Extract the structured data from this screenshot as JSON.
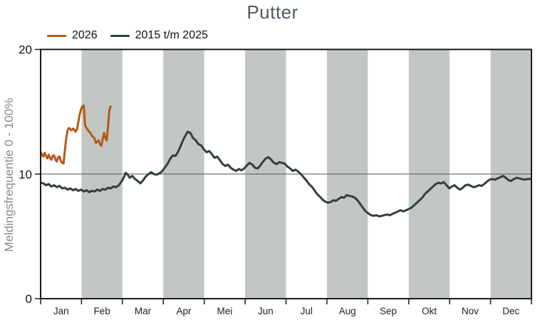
{
  "page": {
    "title": "Putter"
  },
  "legend": {
    "items": [
      {
        "label": "2026",
        "color": "#b4591b"
      },
      {
        "label": "2015 t/m 2025",
        "color": "#333f39"
      }
    ]
  },
  "chart_data": {
    "type": "line",
    "title": "Putter",
    "ylabel": "Meldingsfrequentie 0 - 100%",
    "ylim": [
      0,
      20
    ],
    "yticks": [
      0,
      10,
      20
    ],
    "reference_line_y": 10,
    "x_axis": {
      "unit": "day-of-year",
      "months": [
        "Jan",
        "Feb",
        "Mar",
        "Apr",
        "Mei",
        "Jun",
        "Jul",
        "Aug",
        "Sep",
        "Okt",
        "Nov",
        "Dec"
      ]
    },
    "shaded_months": [
      "Feb",
      "Apr",
      "Jun",
      "Aug",
      "Okt",
      "Dec"
    ],
    "grid": "horizontal-reference-only",
    "legend_position": "top-left",
    "colors": {
      "band": "#c3c7c3",
      "axis": "#1a1a1a",
      "grid": "#555555",
      "title": "#4f5a66",
      "ylabel_text": "#8a8a8a"
    },
    "series": [
      {
        "name": "2026",
        "color": "#b4591b",
        "x": [
          1,
          2,
          3,
          4,
          5,
          6,
          7,
          8,
          9,
          10,
          11,
          12,
          13,
          14,
          15,
          16,
          17,
          18,
          19,
          20,
          21,
          22,
          23,
          24,
          25,
          26,
          27,
          28,
          29,
          30,
          31,
          32,
          33,
          34,
          35,
          36,
          37,
          38,
          39,
          40,
          41,
          42,
          43,
          44,
          45,
          46,
          47,
          48,
          49,
          50,
          51,
          52,
          53
        ],
        "values": [
          11.8,
          11.55,
          11.4,
          11.7,
          11.45,
          11.25,
          11.55,
          11.3,
          11.15,
          11.45,
          11.5,
          11.15,
          11.0,
          11.35,
          11.4,
          11.05,
          10.9,
          10.85,
          11.9,
          12.9,
          13.5,
          13.7,
          13.6,
          13.5,
          13.65,
          13.55,
          13.4,
          13.6,
          14.2,
          14.8,
          15.2,
          15.45,
          15.5,
          13.9,
          13.7,
          13.55,
          13.4,
          13.3,
          13.05,
          13.0,
          12.85,
          12.5,
          12.6,
          12.7,
          12.4,
          12.25,
          12.8,
          13.3,
          12.9,
          12.7,
          13.8,
          15.1,
          15.5
        ]
      },
      {
        "name": "2015 t/m 2025",
        "color": "#333f39",
        "x": [
          1,
          3,
          5,
          7,
          9,
          11,
          13,
          15,
          17,
          19,
          21,
          23,
          25,
          27,
          29,
          31,
          33,
          35,
          37,
          39,
          41,
          43,
          45,
          47,
          49,
          51,
          53,
          55,
          57,
          59,
          61,
          63,
          64,
          66,
          67,
          69,
          71,
          73,
          75,
          77,
          79,
          81,
          83,
          85,
          87,
          89,
          91,
          93,
          95,
          97,
          99,
          101,
          103,
          105,
          107,
          109,
          110,
          112,
          114,
          116,
          118,
          120,
          122,
          124,
          126,
          128,
          130,
          132,
          134,
          136,
          138,
          140,
          142,
          144,
          146,
          148,
          150,
          152,
          154,
          156,
          158,
          160,
          162,
          164,
          166,
          168,
          170,
          172,
          174,
          176,
          178,
          180,
          182,
          184,
          186,
          188,
          190,
          192,
          194,
          196,
          198,
          200,
          202,
          204,
          206,
          208,
          210,
          212,
          214,
          216,
          218,
          220,
          222,
          224,
          226,
          228,
          230,
          232,
          234,
          236,
          238,
          240,
          242,
          244,
          246,
          248,
          250,
          252,
          254,
          256,
          258,
          260,
          262,
          264,
          266,
          268,
          270,
          272,
          274,
          276,
          278,
          280,
          282,
          284,
          286,
          288,
          290,
          292,
          294,
          296,
          298,
          300,
          302,
          304,
          306,
          308,
          310,
          312,
          314,
          316,
          318,
          320,
          322,
          324,
          326,
          328,
          330,
          332,
          334,
          336,
          338,
          340,
          342,
          344,
          346,
          348,
          350,
          352,
          354,
          356,
          358,
          360,
          362,
          365
        ],
        "values": [
          9.3,
          9.25,
          9.1,
          9.2,
          9.0,
          9.1,
          8.95,
          9.05,
          8.85,
          8.9,
          8.75,
          8.85,
          8.7,
          8.8,
          8.65,
          8.75,
          8.6,
          8.7,
          8.55,
          8.65,
          8.6,
          8.75,
          8.65,
          8.8,
          8.75,
          8.9,
          8.85,
          9.0,
          8.95,
          9.1,
          9.4,
          9.8,
          10.1,
          9.9,
          9.7,
          9.85,
          9.6,
          9.45,
          9.25,
          9.5,
          9.8,
          10.0,
          10.15,
          10.0,
          9.95,
          10.05,
          10.2,
          10.5,
          10.8,
          11.2,
          11.5,
          11.45,
          11.8,
          12.3,
          12.8,
          13.2,
          13.4,
          13.3,
          12.9,
          12.7,
          12.4,
          12.3,
          12.0,
          11.75,
          11.85,
          11.6,
          11.3,
          11.4,
          11.1,
          10.8,
          10.65,
          10.75,
          10.5,
          10.35,
          10.25,
          10.4,
          10.3,
          10.45,
          10.7,
          10.9,
          10.75,
          10.5,
          10.45,
          10.7,
          11.0,
          11.25,
          11.35,
          11.15,
          10.9,
          10.8,
          10.95,
          10.9,
          10.85,
          10.6,
          10.45,
          10.25,
          10.35,
          10.2,
          10.0,
          9.75,
          9.5,
          9.2,
          9.0,
          8.7,
          8.4,
          8.2,
          7.95,
          7.8,
          7.7,
          7.75,
          7.9,
          7.85,
          8.0,
          8.15,
          8.1,
          8.3,
          8.25,
          8.2,
          8.1,
          7.9,
          7.6,
          7.3,
          7.0,
          6.85,
          6.7,
          6.65,
          6.7,
          6.6,
          6.65,
          6.7,
          6.75,
          6.7,
          6.8,
          6.9,
          7.0,
          7.1,
          7.0,
          7.1,
          7.2,
          7.3,
          7.5,
          7.7,
          7.9,
          8.1,
          8.4,
          8.6,
          8.8,
          9.0,
          9.2,
          9.3,
          9.25,
          9.35,
          9.1,
          8.85,
          9.0,
          9.1,
          8.9,
          8.75,
          8.9,
          9.1,
          9.15,
          9.05,
          8.95,
          9.0,
          9.1,
          9.05,
          9.2,
          9.4,
          9.55,
          9.6,
          9.55,
          9.65,
          9.75,
          9.85,
          9.7,
          9.5,
          9.45,
          9.6,
          9.7,
          9.65,
          9.6,
          9.55,
          9.6,
          9.6
        ]
      }
    ]
  }
}
